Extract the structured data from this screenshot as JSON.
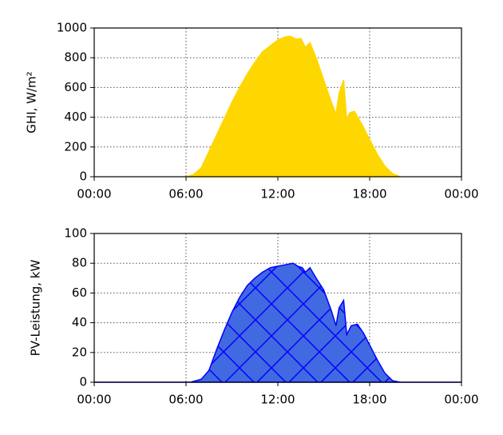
{
  "chart_data": [
    {
      "type": "area",
      "ylabel": "GHI, W/m²",
      "color": "#ffd700",
      "edgecolor": "#ffd700",
      "hatch": false,
      "grid": true,
      "x": [
        6,
        6.5,
        7,
        7.5,
        8,
        8.5,
        9,
        9.5,
        10,
        10.5,
        11,
        11.5,
        12,
        12.5,
        12.8,
        13.2,
        13.5,
        13.8,
        14.1,
        14.5,
        15,
        15.5,
        15.8,
        16.0,
        16.3,
        16.5,
        16.7,
        17.0,
        17.5,
        18,
        18.5,
        19,
        19.5,
        20
      ],
      "values": [
        0,
        15,
        60,
        170,
        280,
        390,
        500,
        600,
        690,
        770,
        840,
        880,
        920,
        940,
        945,
        925,
        930,
        870,
        900,
        800,
        650,
        500,
        420,
        560,
        650,
        380,
        430,
        440,
        350,
        250,
        150,
        70,
        20,
        0
      ],
      "xlim": [
        0,
        24
      ],
      "xticks": [
        {
          "value": 0,
          "label": "00:00"
        },
        {
          "value": 6,
          "label": "06:00"
        },
        {
          "value": 12,
          "label": "12:00"
        },
        {
          "value": 18,
          "label": "18:00"
        },
        {
          "value": 24,
          "label": "00:00"
        }
      ],
      "ylim": [
        0,
        1000
      ],
      "yticks": [
        0,
        200,
        400,
        600,
        800,
        1000
      ]
    },
    {
      "type": "area",
      "ylabel": "PV-Leistung, kW",
      "color": "#4169e1",
      "edgecolor": "#0000ff",
      "hatch": true,
      "grid": true,
      "x": [
        0,
        6.3,
        7,
        7.5,
        8,
        8.5,
        9,
        9.5,
        10,
        10.5,
        11,
        11.5,
        12,
        12.5,
        13,
        13.3,
        13.6,
        13.8,
        14.1,
        14.5,
        15,
        15.5,
        15.8,
        16.0,
        16.3,
        16.5,
        16.8,
        17.2,
        17.6,
        18,
        18.5,
        19,
        19.5,
        20,
        24
      ],
      "values": [
        0,
        0,
        2,
        8,
        22,
        35,
        47,
        57,
        65,
        70,
        74,
        77,
        78,
        79,
        80,
        78,
        77,
        74,
        77,
        70,
        62,
        48,
        38,
        50,
        55,
        32,
        38,
        39,
        33,
        25,
        15,
        6,
        1,
        0,
        0
      ],
      "xlim": [
        0,
        24
      ],
      "xticks": [
        {
          "value": 0,
          "label": "00:00"
        },
        {
          "value": 6,
          "label": "06:00"
        },
        {
          "value": 12,
          "label": "12:00"
        },
        {
          "value": 18,
          "label": "18:00"
        },
        {
          "value": 24,
          "label": "00:00"
        }
      ],
      "ylim": [
        0,
        100
      ],
      "yticks": [
        0,
        20,
        40,
        60,
        80,
        100
      ]
    }
  ]
}
